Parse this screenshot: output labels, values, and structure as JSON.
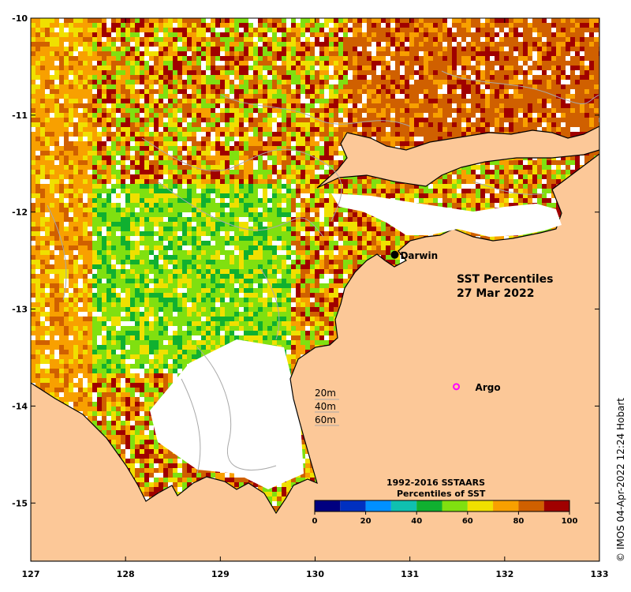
{
  "map": {
    "title_line1": "SST Percentiles",
    "title_line2": "27 Mar 2022",
    "credit": "© IMOS 04-Apr-2022 12:24 Hobart",
    "lon_range": [
      127,
      133
    ],
    "lat_range": [
      -15.6,
      -10
    ],
    "lon_ticks": [
      "127",
      "128",
      "129",
      "130",
      "131",
      "132",
      "133"
    ],
    "lat_ticks": [
      "-10",
      "-11",
      "-12",
      "-13",
      "-14",
      "-15"
    ],
    "land_color": "#fcc898",
    "places": [
      {
        "label": "Darwin",
        "lon": 130.84,
        "lat": -12.44,
        "symbol": "city"
      },
      {
        "label": "Argo",
        "lon": 131.49,
        "lat": -13.8,
        "symbol": "argo"
      }
    ],
    "depth_legend": [
      "20m",
      "40m",
      "60m"
    ]
  },
  "legend": {
    "title_line1": "1992-2016 SSTAARS",
    "title_line2": "Percentiles of SST",
    "tick_labels": [
      "0",
      "20",
      "40",
      "60",
      "80",
      "100"
    ],
    "colors": [
      "#000080",
      "#0030c0",
      "#0090ff",
      "#10c0b0",
      "#10b030",
      "#80e010",
      "#f0e000",
      "#f8a000",
      "#d06000",
      "#a00000"
    ]
  }
}
